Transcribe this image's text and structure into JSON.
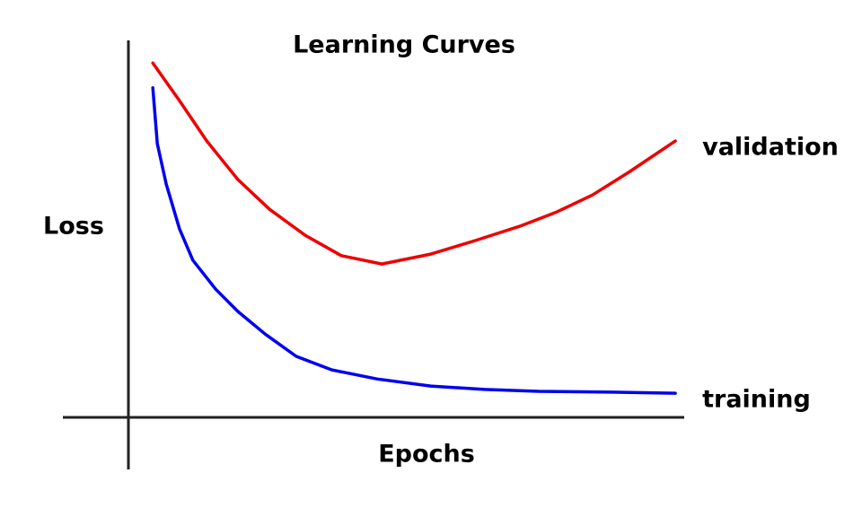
{
  "chart_data": {
    "type": "line",
    "title": "Learning Curves",
    "x_label": "Epochs",
    "y_label": "Loss",
    "xlim": [
      0,
      100
    ],
    "ylim": [
      0,
      100
    ],
    "series": [
      {
        "name": "validation",
        "color": "#ee0000",
        "x": [
          4.4,
          9.2,
          14.1,
          19.7,
          25.4,
          31.8,
          38.3,
          45.6,
          54.4,
          62.4,
          70.4,
          77.1,
          83.5,
          90.0,
          98.4
        ],
        "values": [
          94.0,
          84.0,
          73.3,
          63.1,
          55.2,
          48.3,
          42.9,
          40.7,
          43.3,
          46.9,
          50.7,
          54.5,
          59.0,
          65.0,
          73.3
        ]
      },
      {
        "name": "training",
        "color": "#0000ee",
        "x": [
          4.4,
          5.2,
          6.8,
          9.2,
          11.6,
          15.7,
          19.7,
          24.6,
          30.2,
          36.6,
          44.7,
          54.4,
          64.1,
          73.8,
          86.8,
          98.4
        ],
        "values": [
          87.4,
          72.6,
          61.9,
          50.0,
          41.7,
          34.0,
          28.1,
          22.1,
          16.2,
          12.6,
          10.2,
          8.3,
          7.4,
          6.9,
          6.7,
          6.4
        ]
      }
    ]
  }
}
